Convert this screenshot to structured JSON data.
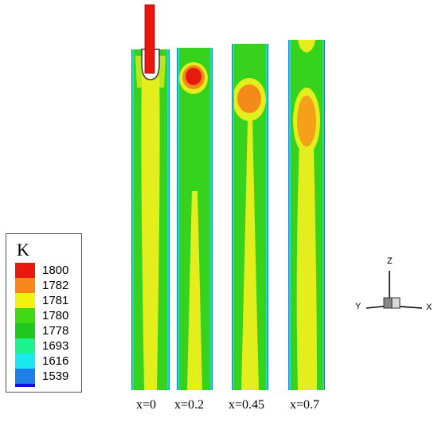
{
  "legend": {
    "title": "K",
    "entries": [
      {
        "label": "1800",
        "color": "#e8180c"
      },
      {
        "label": "1782",
        "color": "#f7861b"
      },
      {
        "label": "1781",
        "color": "#f2f20f"
      },
      {
        "label": "1780",
        "color": "#3fd813"
      },
      {
        "label": "1778",
        "color": "#1ec81e"
      },
      {
        "label": "1693",
        "color": "#1ef28c"
      },
      {
        "label": "1616",
        "color": "#19e8f0"
      },
      {
        "label": "1539",
        "color": "#1e7fe8"
      },
      {
        "label": "",
        "color": "#1212d2"
      }
    ]
  },
  "cases": [
    {
      "label": "x=0"
    },
    {
      "label": "x=0.2"
    },
    {
      "label": "x=0.45"
    },
    {
      "label": "x=0.7"
    }
  ],
  "axes": {
    "z": "Z",
    "y": "Y",
    "x": "X"
  },
  "colors": {
    "field_green": "#37d21e",
    "core_yellow": "#e3ee1c",
    "hot_orange": "#f48a1a",
    "hot_red": "#e81a0c",
    "wall_blue": "#2a62e0",
    "rod_red": "#e8160e"
  }
}
